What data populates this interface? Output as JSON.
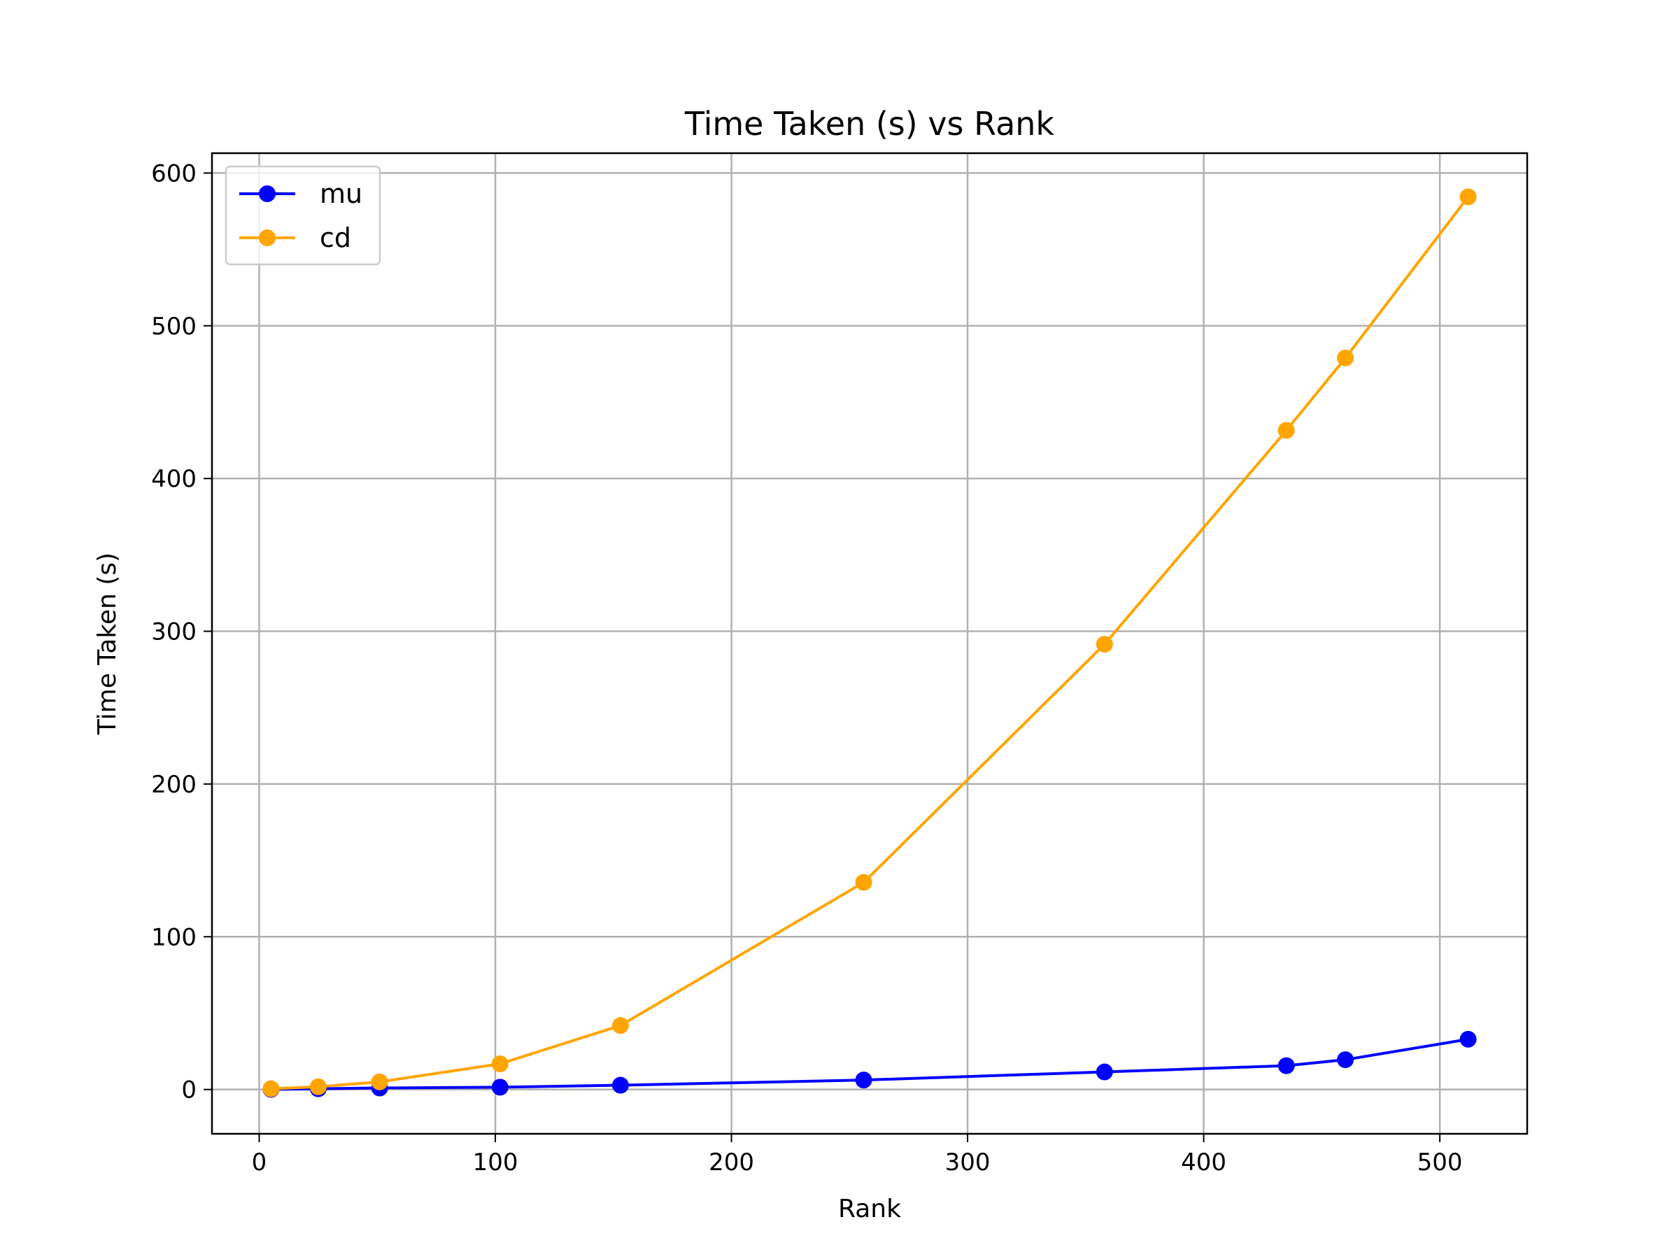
{
  "chart_data": {
    "type": "line",
    "title": "Time Taken (s) vs Rank",
    "xlabel": "Rank",
    "ylabel": "Time Taken (s)",
    "xlim": [
      -20,
      537
    ],
    "ylim": [
      -29,
      613
    ],
    "xticks": [
      0,
      100,
      200,
      300,
      400,
      500
    ],
    "yticks": [
      0,
      100,
      200,
      300,
      400,
      500,
      600
    ],
    "grid": true,
    "legend_position": "top-left",
    "series": [
      {
        "name": "mu",
        "color": "#0000ff",
        "marker": "circle",
        "x": [
          5,
          25,
          51,
          102,
          153,
          256,
          358,
          435,
          460,
          512
        ],
        "y": [
          0.1,
          0.5,
          1.0,
          1.5,
          2.8,
          6.2,
          11.5,
          15.6,
          19.5,
          32.9
        ]
      },
      {
        "name": "cd",
        "color": "#ffa500",
        "marker": "circle",
        "x": [
          5,
          25,
          51,
          102,
          153,
          256,
          358,
          435,
          460,
          512
        ],
        "y": [
          0.5,
          1.8,
          5.0,
          16.8,
          41.9,
          135.6,
          291.5,
          431.5,
          478.9,
          584.4
        ]
      }
    ]
  }
}
